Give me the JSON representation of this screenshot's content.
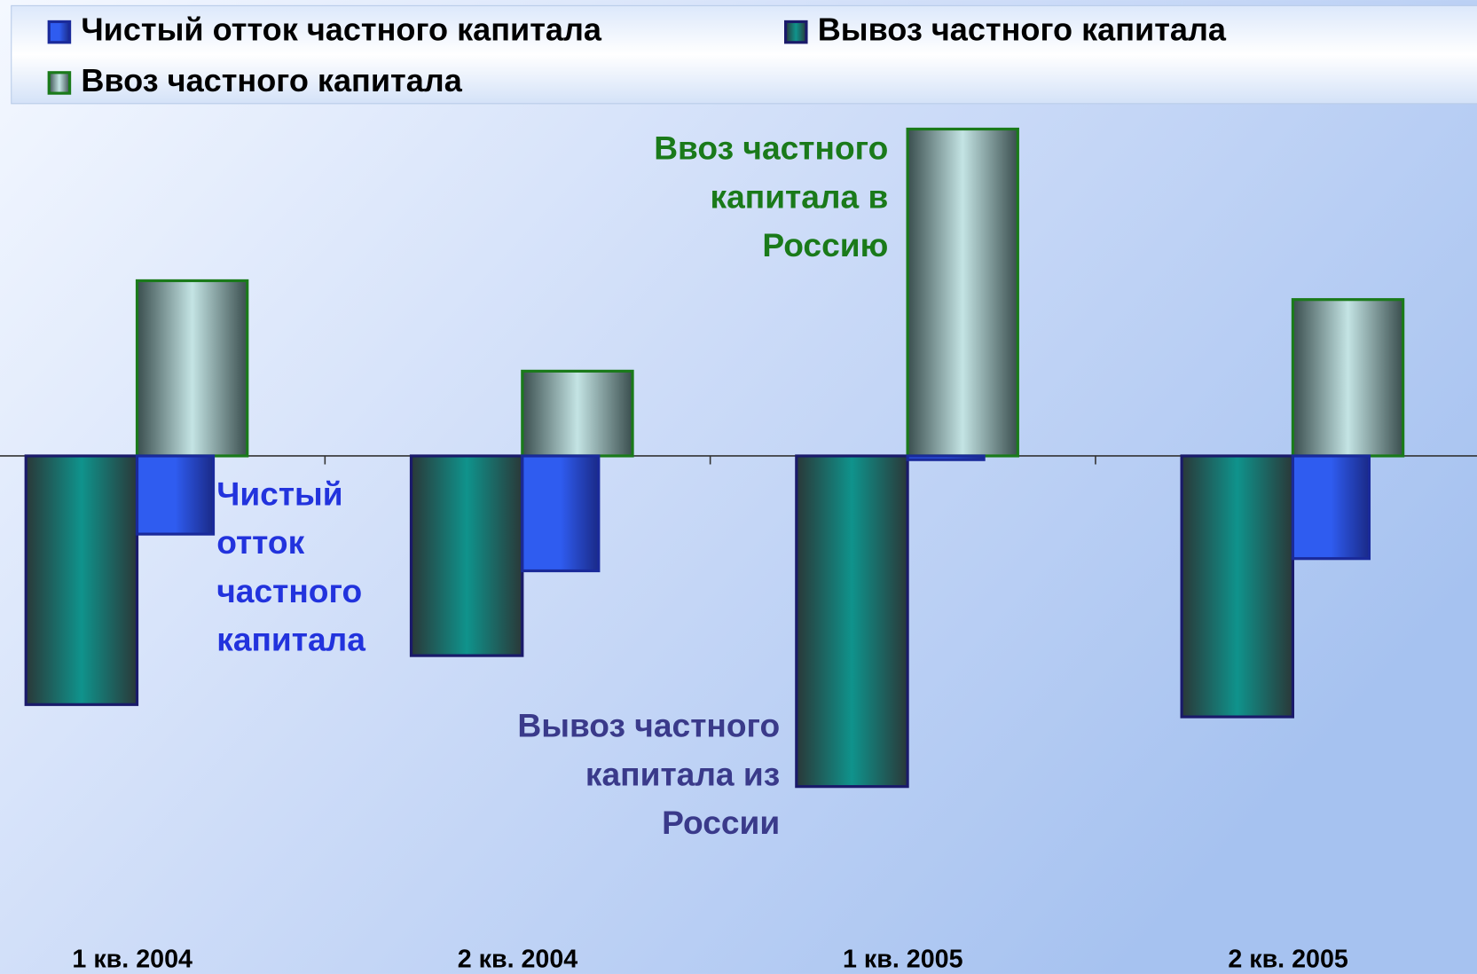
{
  "chart_data": {
    "type": "bar",
    "categories": [
      "1 кв. 2004",
      "2 кв. 2004",
      "1 кв. 2005",
      "2 кв. 2005"
    ],
    "series": [
      {
        "name": "Чистый отток частного капитала",
        "color": "#2f5cf0",
        "border": "#1a2a9a",
        "values": [
          -83,
          -122,
          -4,
          -109
        ]
      },
      {
        "name": "Вывоз частного капитала",
        "color": "#0f938c",
        "border": "#1a1a6a",
        "values": [
          -264,
          -212,
          -351,
          -277
        ]
      },
      {
        "name": "Ввоз частного капитала",
        "color": "#c4e4e4",
        "border": "#1a7a1a",
        "values": [
          186,
          90,
          347,
          166
        ]
      }
    ],
    "ylim": [
      -520,
      365
    ],
    "annotations": [
      {
        "lines": [
          "Ввоз частного",
          "капитала в",
          "Россию"
        ],
        "color": "#1a7a1a"
      },
      {
        "lines": [
          "Чистый",
          "отток",
          "частного",
          "капитала"
        ],
        "color": "#2233dd"
      },
      {
        "lines": [
          "Вывоз частного",
          "капитала из",
          "России"
        ],
        "color": "#3a3a8a"
      }
    ]
  }
}
